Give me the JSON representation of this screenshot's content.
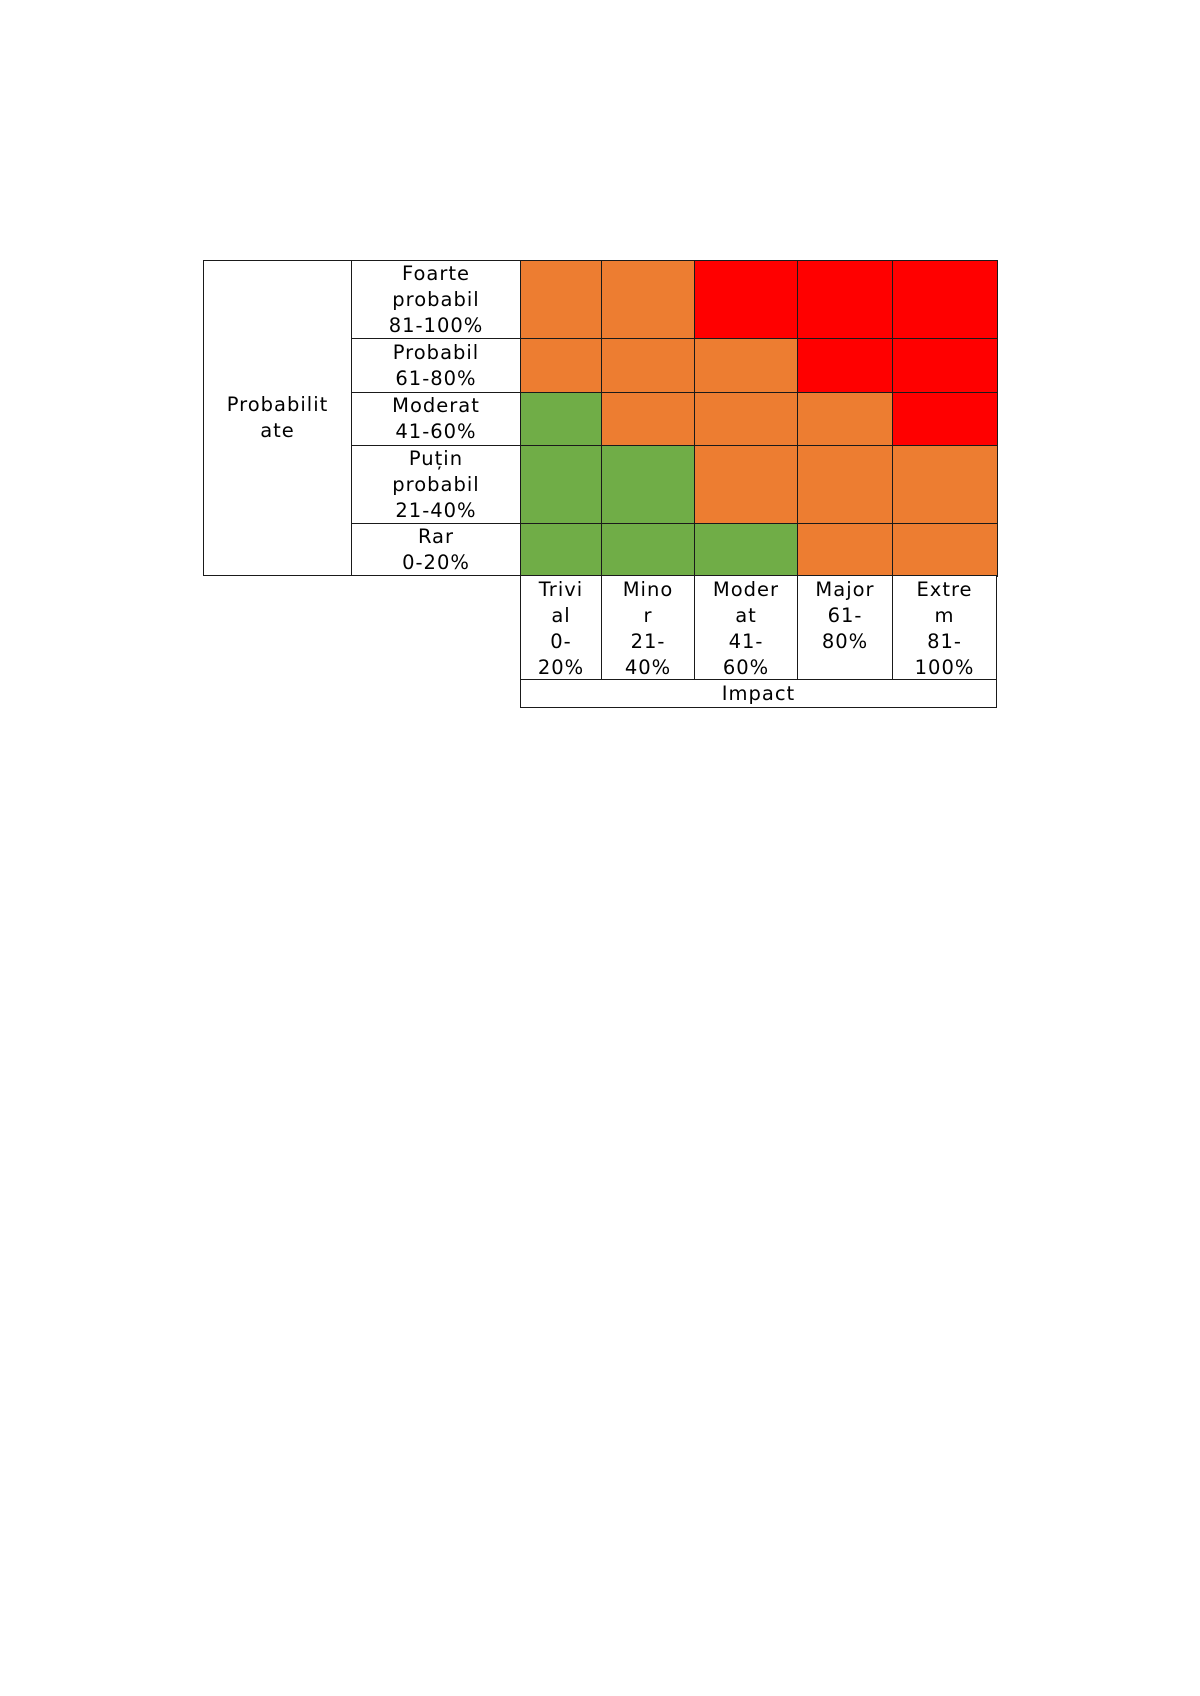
{
  "document": {
    "probability_axis_label": "Probabilit\nate",
    "impact_axis_label": "Impact",
    "colors": {
      "green": "#70AD47",
      "orange": "#ED7D31",
      "red": "#FF0000",
      "border": "#1a1a1a"
    },
    "probability_rows": [
      {
        "label": "Foarte\nprobabil\n81-100%",
        "cells": [
          "orange",
          "orange",
          "red",
          "red",
          "red"
        ]
      },
      {
        "label": "Probabil\n61-80%",
        "cells": [
          "orange",
          "orange",
          "orange",
          "red",
          "red"
        ]
      },
      {
        "label": "Moderat\n41-60%",
        "cells": [
          "green",
          "orange",
          "orange",
          "orange",
          "red"
        ]
      },
      {
        "label": "Puțin\nprobabil\n21-40%",
        "cells": [
          "green",
          "green",
          "orange",
          "orange",
          "orange"
        ]
      },
      {
        "label": "Rar\n0-20%",
        "cells": [
          "green",
          "green",
          "green",
          "orange",
          "orange"
        ]
      }
    ],
    "impact_columns": [
      {
        "label": "Trivi\nal\n0-\n20%"
      },
      {
        "label": "Mino\nr\n21-\n40%"
      },
      {
        "label": "Moder\nat\n41-\n60%"
      },
      {
        "label": "Major\n61-\n80%"
      },
      {
        "label": "Extre\nm\n81-\n100%"
      }
    ]
  }
}
